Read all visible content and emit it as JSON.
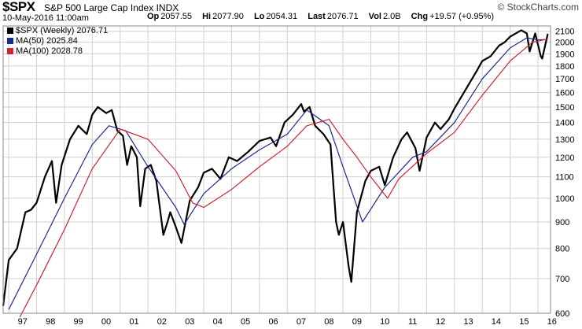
{
  "header": {
    "symbol": "$SPX",
    "name": "S&P 500 Large Cap Index",
    "exchange": "INDX",
    "date": "10-May-2016 11:00am",
    "stats": {
      "open_label": "Op",
      "open": "2057.55",
      "high_label": "Hi",
      "high": "2077.90",
      "low_label": "Lo",
      "low": "2054.31",
      "last_label": "Last",
      "last": "2076.71",
      "vol_label": "Vol",
      "vol": "2.0B",
      "chg_label": "Chg",
      "chg": "+19.57 (+0.95%)"
    },
    "site": "© StockCharts.com"
  },
  "legend": {
    "price": "$SPX (Weekly) 2076.71",
    "ma50": "MA(50) 2025.84",
    "ma100": "MA(100) 2028.78"
  },
  "colors": {
    "price": "#000000",
    "ma50": "#1c2a8c",
    "ma100": "#d42430",
    "grid": "#d0d0d0",
    "background": "#ffffff"
  },
  "chart_data": {
    "type": "line",
    "scale": "log",
    "grid": true,
    "legend_position": "top-left",
    "ylim": [
      600,
      2150
    ],
    "xlim": [
      1996.8,
      2016.45
    ],
    "y_ticks": [
      600,
      700,
      800,
      900,
      1000,
      1100,
      1200,
      1300,
      1400,
      1500,
      1600,
      1700,
      1800,
      1900,
      2000,
      2100
    ],
    "x_ticks": [
      "97",
      "98",
      "99",
      "00",
      "01",
      "02",
      "03",
      "04",
      "05",
      "06",
      "07",
      "08",
      "09",
      "10",
      "11",
      "12",
      "13",
      "14",
      "15",
      "16"
    ],
    "series": [
      {
        "name": "$SPX (Weekly)",
        "x": [
          1996.8,
          1997.0,
          1997.3,
          1997.6,
          1997.8,
          1998.0,
          1998.3,
          1998.55,
          1998.7,
          1998.9,
          1999.2,
          1999.5,
          1999.8,
          2000.0,
          2000.2,
          2000.5,
          2000.7,
          2000.9,
          2001.1,
          2001.25,
          2001.4,
          2001.6,
          2001.72,
          2001.9,
          2002.1,
          2002.3,
          2002.55,
          2002.7,
          2002.8,
          2003.0,
          2003.2,
          2003.5,
          2003.8,
          2004.0,
          2004.3,
          2004.6,
          2004.9,
          2005.2,
          2005.6,
          2006.0,
          2006.4,
          2006.6,
          2006.9,
          2007.2,
          2007.5,
          2007.6,
          2007.8,
          2008.0,
          2008.3,
          2008.55,
          2008.75,
          2008.85,
          2009.0,
          2009.2,
          2009.3,
          2009.5,
          2009.8,
          2010.0,
          2010.3,
          2010.5,
          2010.8,
          2011.1,
          2011.3,
          2011.6,
          2011.75,
          2012.0,
          2012.3,
          2012.5,
          2012.8,
          2013.0,
          2013.4,
          2013.8,
          2014.0,
          2014.3,
          2014.6,
          2014.8,
          2015.0,
          2015.4,
          2015.6,
          2015.7,
          2015.9,
          2016.1,
          2016.15,
          2016.35
        ],
        "values": [
          620,
          760,
          800,
          940,
          950,
          980,
          1100,
          1180,
          980,
          1160,
          1300,
          1380,
          1330,
          1450,
          1500,
          1460,
          1480,
          1350,
          1320,
          1160,
          1260,
          1200,
          965,
          1140,
          1160,
          1080,
          850,
          900,
          940,
          880,
          820,
          990,
          1050,
          1120,
          1140,
          1090,
          1200,
          1180,
          1230,
          1290,
          1310,
          1260,
          1400,
          1450,
          1520,
          1470,
          1500,
          1380,
          1330,
          1270,
          900,
          850,
          900,
          740,
          690,
          940,
          1080,
          1130,
          1150,
          1060,
          1200,
          1300,
          1340,
          1250,
          1130,
          1310,
          1400,
          1360,
          1420,
          1490,
          1620,
          1760,
          1840,
          1880,
          1970,
          2000,
          2050,
          2110,
          2080,
          1920,
          2080,
          1880,
          1860,
          2076
        ]
      },
      {
        "name": "MA(50)",
        "x": [
          1997.0,
          1998.0,
          1999.0,
          2000.0,
          2000.6,
          2001.2,
          2002.0,
          2003.0,
          2003.3,
          2004.0,
          2005.0,
          2006.0,
          2007.0,
          2007.7,
          2008.5,
          2009.0,
          2009.7,
          2010.5,
          2011.5,
          2012.0,
          2013.0,
          2014.0,
          2015.0,
          2015.6,
          2016.0,
          2016.35
        ],
        "values": [
          610,
          780,
          1000,
          1270,
          1380,
          1350,
          1150,
          960,
          890,
          1020,
          1140,
          1240,
          1330,
          1480,
          1380,
          1150,
          900,
          1050,
          1200,
          1230,
          1400,
          1700,
          1950,
          2040,
          2020,
          2026
        ]
      },
      {
        "name": "MA(100)",
        "x": [
          1997.4,
          1998.0,
          1999.0,
          2000.0,
          2001.0,
          2002.0,
          2003.0,
          2003.6,
          2004.0,
          2005.0,
          2006.0,
          2007.0,
          2007.7,
          2008.5,
          2009.0,
          2009.5,
          2010.0,
          2010.6,
          2011.0,
          2012.0,
          2013.0,
          2014.0,
          2015.0,
          2015.8,
          2016.35
        ],
        "values": [
          590,
          680,
          870,
          1140,
          1360,
          1300,
          1130,
          980,
          960,
          1040,
          1150,
          1260,
          1380,
          1420,
          1300,
          1200,
          1100,
          1000,
          1090,
          1220,
          1340,
          1580,
          1840,
          2000,
          2029
        ]
      }
    ]
  }
}
